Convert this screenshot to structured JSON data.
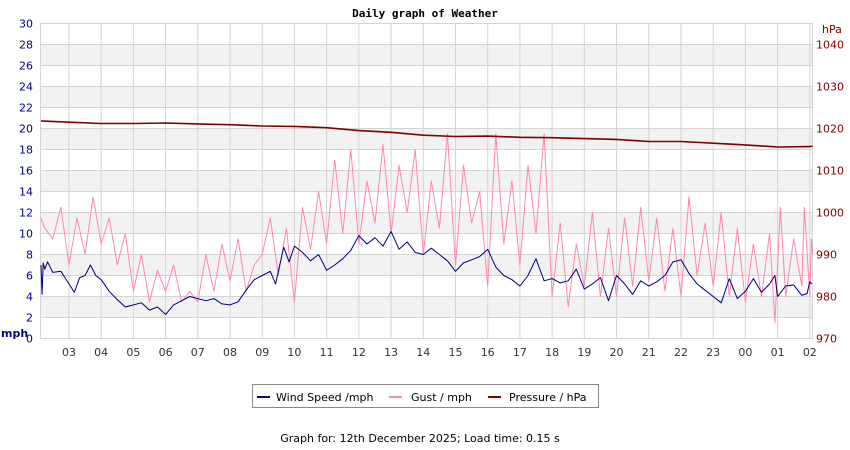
{
  "chart_data": {
    "type": "line",
    "title": "Daily graph of Weather",
    "ylabel_left": "mph",
    "ylabel_right": "hPa",
    "ylim_left": [
      0,
      30
    ],
    "ylim_right": [
      970,
      1045
    ],
    "xlim": [
      "02:07",
      "02:05"
    ],
    "grid": true,
    "legend_placement": "bottom",
    "left_ticks": [
      "0",
      "2",
      "4",
      "6",
      "8",
      "10",
      "12",
      "14",
      "16",
      "18",
      "20",
      "22",
      "24",
      "26",
      "28",
      "30"
    ],
    "right_ticks": [
      "970",
      "980",
      "990",
      "1000",
      "1010",
      "1020",
      "1030",
      "1040"
    ],
    "x_ticks": [
      "03",
      "04",
      "05",
      "06",
      "07",
      "08",
      "09",
      "10",
      "11",
      "12",
      "13",
      "14",
      "15",
      "16",
      "17",
      "18",
      "19",
      "20",
      "21",
      "22",
      "23",
      "00",
      "01",
      "02"
    ],
    "colors": {
      "wind": "#000080",
      "gust": "#ff88aa",
      "pressure": "#800000",
      "left_axis": "#000080",
      "right_axis": "#800000",
      "band": "#f2f2f2",
      "grid": "#d4d4d4"
    },
    "series": [
      {
        "name": "Wind Speed /mph",
        "axis": "left",
        "points": [
          [
            "02:08",
            7
          ],
          [
            "02:10",
            4.2
          ],
          [
            "02:12",
            7.2
          ],
          [
            "02:15",
            6.6
          ],
          [
            "02:20",
            7.3
          ],
          [
            "02:30",
            6.3
          ],
          [
            "02:45",
            6.4
          ],
          [
            "03:00",
            5.2
          ],
          [
            "03:10",
            4.4
          ],
          [
            "03:20",
            5.8
          ],
          [
            "03:30",
            6
          ],
          [
            "03:40",
            7
          ],
          [
            "03:50",
            6
          ],
          [
            "04:00",
            5.6
          ],
          [
            "04:15",
            4.5
          ],
          [
            "04:30",
            3.7
          ],
          [
            "04:45",
            3
          ],
          [
            "05:00",
            3.2
          ],
          [
            "05:15",
            3.4
          ],
          [
            "05:30",
            2.7
          ],
          [
            "05:45",
            3
          ],
          [
            "06:00",
            2.3
          ],
          [
            "06:15",
            3.2
          ],
          [
            "06:30",
            3.6
          ],
          [
            "06:45",
            4
          ],
          [
            "07:00",
            3.8
          ],
          [
            "07:15",
            3.6
          ],
          [
            "07:30",
            3.8
          ],
          [
            "07:45",
            3.3
          ],
          [
            "08:00",
            3.2
          ],
          [
            "08:15",
            3.5
          ],
          [
            "08:30",
            4.6
          ],
          [
            "08:45",
            5.6
          ],
          [
            "09:00",
            6
          ],
          [
            "09:15",
            6.4
          ],
          [
            "09:25",
            5.2
          ],
          [
            "09:40",
            8.7
          ],
          [
            "09:50",
            7.3
          ],
          [
            "10:00",
            8.8
          ],
          [
            "10:15",
            8.2
          ],
          [
            "10:30",
            7.4
          ],
          [
            "10:45",
            8
          ],
          [
            "11:00",
            6.5
          ],
          [
            "11:15",
            7
          ],
          [
            "11:30",
            7.6
          ],
          [
            "11:45",
            8.4
          ],
          [
            "12:00",
            9.8
          ],
          [
            "12:15",
            9
          ],
          [
            "12:30",
            9.6
          ],
          [
            "12:45",
            8.8
          ],
          [
            "13:00",
            10.2
          ],
          [
            "13:15",
            8.5
          ],
          [
            "13:30",
            9.2
          ],
          [
            "13:45",
            8.2
          ],
          [
            "14:00",
            8
          ],
          [
            "14:15",
            8.6
          ],
          [
            "14:30",
            8
          ],
          [
            "14:45",
            7.4
          ],
          [
            "15:00",
            6.4
          ],
          [
            "15:15",
            7.2
          ],
          [
            "15:30",
            7.5
          ],
          [
            "15:45",
            7.8
          ],
          [
            "16:00",
            8.5
          ],
          [
            "16:15",
            6.8
          ],
          [
            "16:30",
            6
          ],
          [
            "16:45",
            5.6
          ],
          [
            "17:00",
            5
          ],
          [
            "17:15",
            6
          ],
          [
            "17:30",
            7.6
          ],
          [
            "17:45",
            5.5
          ],
          [
            "18:00",
            5.7
          ],
          [
            "18:15",
            5.3
          ],
          [
            "18:30",
            5.5
          ],
          [
            "18:45",
            6.6
          ],
          [
            "19:00",
            4.7
          ],
          [
            "19:15",
            5.2
          ],
          [
            "19:30",
            5.8
          ],
          [
            "19:45",
            3.6
          ],
          [
            "20:00",
            6
          ],
          [
            "20:15",
            5.2
          ],
          [
            "20:30",
            4.2
          ],
          [
            "20:45",
            5.5
          ],
          [
            "21:00",
            5
          ],
          [
            "21:15",
            5.4
          ],
          [
            "21:30",
            6
          ],
          [
            "21:45",
            7.3
          ],
          [
            "22:00",
            7.5
          ],
          [
            "22:15",
            6.2
          ],
          [
            "22:30",
            5.2
          ],
          [
            "22:45",
            4.6
          ],
          [
            "23:00",
            4
          ],
          [
            "23:15",
            3.4
          ],
          [
            "23:30",
            5.7
          ],
          [
            "23:45",
            3.8
          ],
          [
            "00:00",
            4.5
          ],
          [
            "00:15",
            5.7
          ],
          [
            "00:30",
            4.4
          ],
          [
            "00:45",
            5.2
          ],
          [
            "00:55",
            6
          ],
          [
            "01:00",
            4
          ],
          [
            "01:15",
            5
          ],
          [
            "01:30",
            5.1
          ],
          [
            "01:45",
            4.1
          ],
          [
            "01:55",
            4.3
          ],
          [
            "02:00",
            5.4
          ],
          [
            "02:04",
            5.2
          ]
        ]
      },
      {
        "name": "Gust / mph",
        "axis": "left",
        "points": [
          [
            "02:08",
            11.5
          ],
          [
            "02:15",
            10.5
          ],
          [
            "02:30",
            9.5
          ],
          [
            "02:45",
            12.5
          ],
          [
            "03:00",
            7
          ],
          [
            "03:15",
            11.5
          ],
          [
            "03:30",
            8
          ],
          [
            "03:45",
            13.5
          ],
          [
            "04:00",
            9
          ],
          [
            "04:15",
            11.5
          ],
          [
            "04:30",
            7
          ],
          [
            "04:45",
            10
          ],
          [
            "05:00",
            4.5
          ],
          [
            "05:15",
            8
          ],
          [
            "05:30",
            3.5
          ],
          [
            "05:45",
            6.5
          ],
          [
            "06:00",
            4.5
          ],
          [
            "06:15",
            7
          ],
          [
            "06:30",
            3.5
          ],
          [
            "06:45",
            4.5
          ],
          [
            "07:00",
            3.5
          ],
          [
            "07:15",
            8
          ],
          [
            "07:30",
            4.5
          ],
          [
            "07:45",
            9
          ],
          [
            "08:00",
            5.5
          ],
          [
            "08:15",
            9.5
          ],
          [
            "08:30",
            4.5
          ],
          [
            "08:45",
            7
          ],
          [
            "09:00",
            8
          ],
          [
            "09:15",
            11.5
          ],
          [
            "09:30",
            6
          ],
          [
            "09:45",
            10.5
          ],
          [
            "10:00",
            3.5
          ],
          [
            "10:15",
            12.5
          ],
          [
            "10:30",
            8.5
          ],
          [
            "10:45",
            14
          ],
          [
            "11:00",
            9
          ],
          [
            "11:15",
            17
          ],
          [
            "11:30",
            10
          ],
          [
            "11:45",
            18
          ],
          [
            "12:00",
            9
          ],
          [
            "12:15",
            15
          ],
          [
            "12:30",
            11
          ],
          [
            "12:45",
            18.5
          ],
          [
            "13:00",
            10
          ],
          [
            "13:15",
            16.5
          ],
          [
            "13:30",
            12
          ],
          [
            "13:45",
            18
          ],
          [
            "14:00",
            8
          ],
          [
            "14:15",
            15
          ],
          [
            "14:30",
            10.5
          ],
          [
            "14:45",
            19.5
          ],
          [
            "15:00",
            7
          ],
          [
            "15:15",
            16.5
          ],
          [
            "15:30",
            11
          ],
          [
            "15:45",
            14
          ],
          [
            "16:00",
            5
          ],
          [
            "16:15",
            19.5
          ],
          [
            "16:30",
            9
          ],
          [
            "16:45",
            15
          ],
          [
            "17:00",
            7
          ],
          [
            "17:15",
            16.5
          ],
          [
            "17:30",
            10
          ],
          [
            "17:45",
            19.5
          ],
          [
            "18:00",
            4
          ],
          [
            "18:15",
            11
          ],
          [
            "18:30",
            3
          ],
          [
            "18:45",
            9
          ],
          [
            "19:00",
            5
          ],
          [
            "19:15",
            12
          ],
          [
            "19:30",
            4
          ],
          [
            "19:45",
            10.5
          ],
          [
            "20:00",
            4
          ],
          [
            "20:15",
            11.5
          ],
          [
            "20:30",
            5
          ],
          [
            "20:45",
            12.5
          ],
          [
            "21:00",
            5.5
          ],
          [
            "21:15",
            11.5
          ],
          [
            "21:30",
            4.5
          ],
          [
            "21:45",
            10.5
          ],
          [
            "22:00",
            4
          ],
          [
            "22:15",
            13.5
          ],
          [
            "22:30",
            6
          ],
          [
            "22:45",
            11
          ],
          [
            "23:00",
            5
          ],
          [
            "23:15",
            12
          ],
          [
            "23:30",
            4
          ],
          [
            "23:45",
            10.5
          ],
          [
            "00:00",
            3.5
          ],
          [
            "00:15",
            9
          ],
          [
            "00:30",
            4
          ],
          [
            "00:45",
            10
          ],
          [
            "00:55",
            1.5
          ],
          [
            "01:05",
            12.5
          ],
          [
            "01:15",
            4
          ],
          [
            "01:30",
            9.5
          ],
          [
            "01:45",
            5
          ],
          [
            "01:50",
            12.5
          ],
          [
            "02:00",
            4
          ],
          [
            "02:03",
            9.5
          ],
          [
            "02:05",
            8
          ]
        ]
      },
      {
        "name": "Pressure / hPa",
        "axis": "right",
        "points": [
          [
            "02:08",
            1021.8
          ],
          [
            "03:00",
            1021.5
          ],
          [
            "04:00",
            1021.2
          ],
          [
            "05:00",
            1021.2
          ],
          [
            "06:00",
            1021.3
          ],
          [
            "07:00",
            1021.1
          ],
          [
            "08:00",
            1020.9
          ],
          [
            "09:00",
            1020.6
          ],
          [
            "10:00",
            1020.5
          ],
          [
            "11:00",
            1020.2
          ],
          [
            "12:00",
            1019.5
          ],
          [
            "13:00",
            1019.1
          ],
          [
            "14:00",
            1018.4
          ],
          [
            "15:00",
            1018.1
          ],
          [
            "16:00",
            1018.2
          ],
          [
            "17:00",
            1017.9
          ],
          [
            "18:00",
            1017.8
          ],
          [
            "19:00",
            1017.6
          ],
          [
            "20:00",
            1017.4
          ],
          [
            "21:00",
            1016.9
          ],
          [
            "22:00",
            1016.9
          ],
          [
            "23:00",
            1016.5
          ],
          [
            "00:00",
            1016.1
          ],
          [
            "01:00",
            1015.6
          ],
          [
            "02:00",
            1015.7
          ],
          [
            "02:05",
            1015.8
          ]
        ]
      }
    ]
  },
  "legend": {
    "wind": "Wind Speed /mph",
    "gust": "Gust / mph",
    "pressure": "Pressure / hPa"
  },
  "footer": "Graph for: 12th December 2025; Load time: 0.15 s"
}
